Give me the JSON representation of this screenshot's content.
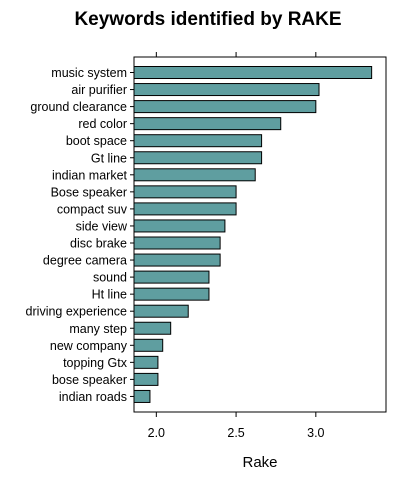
{
  "chart_data": {
    "type": "bar",
    "orientation": "horizontal",
    "title": "Keywords identified by RAKE",
    "xlabel": "Rake",
    "ylabel": "",
    "categories": [
      "music system",
      "air purifier",
      "ground clearance",
      "red color",
      "boot space",
      "Gt line",
      "indian market",
      "Bose speaker",
      "compact suv",
      "side view",
      "disc brake",
      "degree camera",
      "sound",
      "Ht line",
      "driving experience",
      "many step",
      "new company",
      "topping Gtx",
      "bose speaker",
      "indian roads"
    ],
    "values": [
      3.35,
      3.02,
      3.0,
      2.78,
      2.66,
      2.66,
      2.62,
      2.5,
      2.5,
      2.43,
      2.4,
      2.4,
      2.33,
      2.33,
      2.2,
      2.09,
      2.04,
      2.01,
      2.01,
      1.96
    ],
    "xlim": [
      1.86,
      3.44
    ],
    "x_ticks": [
      "2.0",
      "2.5",
      "3.0"
    ],
    "x_tick_values": [
      2.0,
      2.5,
      3.0
    ],
    "axis_position": "top-tick-marks-bottom-labels",
    "grid": false,
    "legend": "none",
    "bar_color": "#5f9ea0",
    "bar_edge_color": "#000000"
  }
}
